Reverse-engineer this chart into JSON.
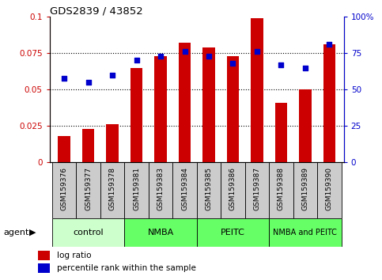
{
  "title": "GDS2839 / 43852",
  "samples": [
    "GSM159376",
    "GSM159377",
    "GSM159378",
    "GSM159381",
    "GSM159383",
    "GSM159384",
    "GSM159385",
    "GSM159386",
    "GSM159387",
    "GSM159388",
    "GSM159389",
    "GSM159390"
  ],
  "log_ratio": [
    0.018,
    0.023,
    0.026,
    0.065,
    0.073,
    0.082,
    0.079,
    0.073,
    0.099,
    0.041,
    0.05,
    0.081
  ],
  "pct_rank": [
    58,
    55,
    60,
    70,
    73,
    76,
    73,
    68,
    76,
    67,
    65,
    81
  ],
  "bar_color": "#cc0000",
  "dot_color": "#0000cc",
  "ylim_left": [
    0,
    0.1
  ],
  "ylim_right": [
    0,
    100
  ],
  "yticks_left": [
    0,
    0.025,
    0.05,
    0.075,
    0.1
  ],
  "yticks_right": [
    0,
    25,
    50,
    75,
    100
  ],
  "groups": [
    {
      "label": "control",
      "start": 0,
      "end": 3,
      "color": "#ccffcc"
    },
    {
      "label": "NMBA",
      "start": 3,
      "end": 6,
      "color": "#66ff66"
    },
    {
      "label": "PEITC",
      "start": 6,
      "end": 9,
      "color": "#66ff66"
    },
    {
      "label": "NMBA and PEITC",
      "start": 9,
      "end": 12,
      "color": "#66ff66"
    }
  ],
  "legend_bar_label": "log ratio",
  "legend_dot_label": "percentile rank within the sample",
  "bar_color_legend": "#cc0000",
  "dot_color_legend": "#0000cc",
  "tick_color_left": "#cc0000",
  "tick_color_right": "#0000cc",
  "sample_box_color": "#cccccc",
  "agent_label": "agent"
}
